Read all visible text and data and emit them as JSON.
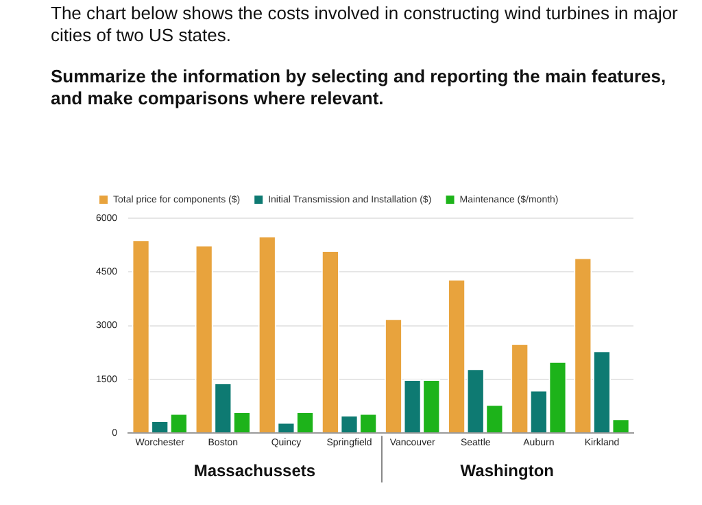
{
  "chart_data": {
    "type": "bar",
    "title": "The chart below shows the costs involved in constructing wind turbines in major cities of two US states.",
    "subtitle": "Summarize the information by selecting and reporting the main features, and make comparisons where relevant.",
    "categories": [
      "Worchester",
      "Boston",
      "Quincy",
      "Springfield",
      "Vancouver",
      "Seattle",
      "Auburn",
      "Kirkland"
    ],
    "series": [
      {
        "name": "Total price for components ($)",
        "color": "#e8a33d",
        "values": [
          5400,
          5250,
          5500,
          5100,
          3200,
          4300,
          2500,
          4900
        ]
      },
      {
        "name": "Initial Transmission and Installation ($)",
        "color": "#0e7a72",
        "values": [
          350,
          1400,
          300,
          500,
          1500,
          1800,
          1200,
          2300
        ]
      },
      {
        "name": "Maintenance ($/month)",
        "color": "#1db31a",
        "values": [
          550,
          600,
          600,
          550,
          1500,
          800,
          2000,
          400
        ]
      }
    ],
    "annotations": [
      "Massachussets",
      "Washington"
    ],
    "ylim": [
      0,
      6000
    ],
    "yticks": [
      0,
      1500,
      3000,
      4500,
      6000
    ],
    "grid": "y",
    "legend": "top"
  }
}
